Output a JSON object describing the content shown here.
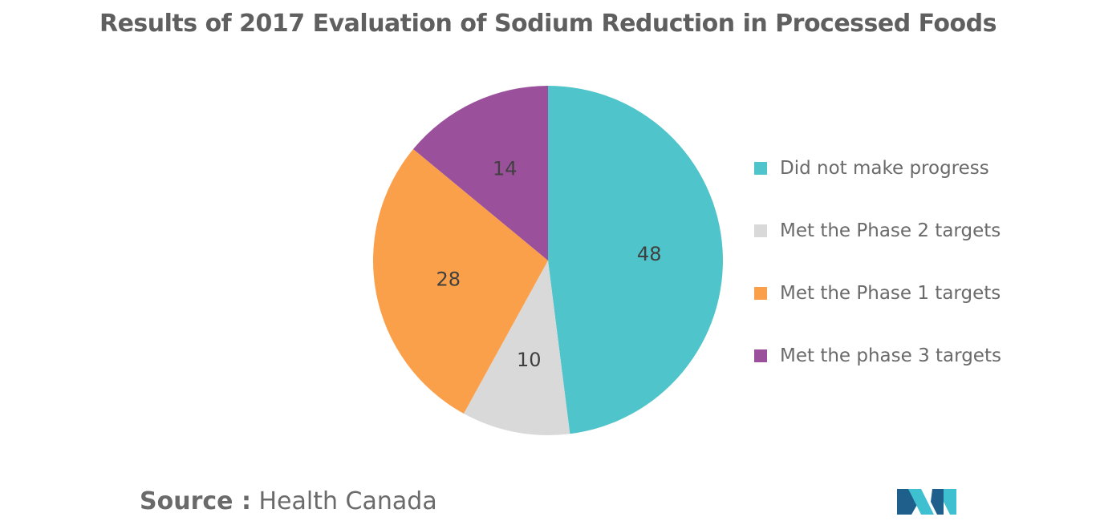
{
  "chart_data": {
    "type": "pie",
    "title": "Results of 2017 Evaluation of Sodium Reduction in Processed Foods",
    "slices": [
      {
        "label": "Did not make progress",
        "value": 48,
        "color": "#4fc4ca"
      },
      {
        "label": "Met the Phase 2 targets",
        "value": 10,
        "color": "#d9d9d9"
      },
      {
        "label": "Met the Phase 1 targets",
        "value": 28,
        "color": "#fba04a"
      },
      {
        "label": "Met the phase 3 targets",
        "value": 14,
        "color": "#9b509c"
      }
    ],
    "legend_position": "right",
    "start_angle_deg": 0,
    "direction": "clockwise"
  },
  "source": {
    "label": "Source :",
    "text": "Health Canada"
  },
  "logo": {
    "icon": "mordor-logo-icon",
    "colors": [
      "#1f5f8b",
      "#3fc0d0"
    ]
  }
}
